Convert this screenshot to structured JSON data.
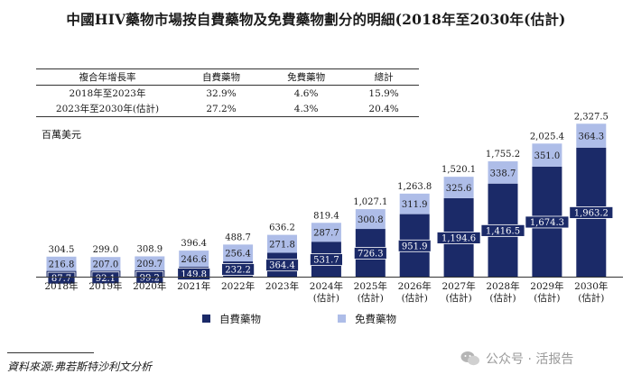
{
  "title": "中國HIV藥物市場按自費藥物及免費藥物劃分的明細(2018年至2030年(估計)",
  "cagr_table": {
    "headers": [
      "複合年增長率",
      "自費藥物",
      "免費藥物",
      "總計"
    ],
    "rows": [
      [
        "2018年至2023年",
        "32.9%",
        "4.6%",
        "15.9%"
      ],
      [
        "2023年至2030年(估計)",
        "27.2%",
        "4.3%",
        "20.4%"
      ]
    ]
  },
  "unit_label": "百萬美元",
  "source": "資料來源:弗若斯特沙利文分析",
  "watermark": "公众号 · 活报告",
  "colors": {
    "self_paid": "#1b2a68",
    "free": "#aebde8",
    "label_bg": "#1b2a68"
  },
  "chart_data": {
    "type": "bar",
    "stacked": true,
    "categories": [
      "2018年",
      "2019年",
      "2020年",
      "2021年",
      "2022年",
      "2023年",
      "2024年\n(估計)",
      "2025年\n(估計)",
      "2026年\n(估計)",
      "2027年\n(估計)",
      "2028年\n(估計)",
      "2029年\n(估計)",
      "2030年\n(估計)"
    ],
    "series": [
      {
        "name": "自費藥物",
        "values": [
          87.7,
          92.1,
          99.2,
          149.8,
          232.2,
          364.4,
          531.7,
          726.3,
          951.9,
          1194.6,
          1416.5,
          1674.3,
          1963.2
        ],
        "labels": [
          "87.7",
          "92.1",
          "99.2",
          "149.8",
          "232.2",
          "364.4",
          "531.7",
          "726.3",
          "951.9",
          "1,194.6",
          "1,416.5",
          "1,674.3",
          "1,963.2"
        ]
      },
      {
        "name": "免費藥物",
        "values": [
          216.8,
          207.0,
          209.7,
          246.6,
          256.4,
          271.8,
          287.7,
          300.8,
          311.9,
          325.6,
          338.7,
          351.0,
          364.3
        ],
        "labels": [
          "216.8",
          "207.0",
          "209.7",
          "246.6",
          "256.4",
          "271.8",
          "287.7",
          "300.8",
          "311.9",
          "325.6",
          "338.7",
          "351.0",
          "364.3"
        ]
      }
    ],
    "totals": [
      "304.5",
      "299.0",
      "308.9",
      "396.4",
      "488.7",
      "636.2",
      "819.4",
      "1,027.1",
      "1,263.8",
      "1,520.1",
      "1,755.2",
      "2,025.4",
      "2,327.5"
    ],
    "ylabel": "百萬美元",
    "ylim": [
      0,
      2400
    ],
    "legend": [
      "自費藥物",
      "免費藥物"
    ],
    "legend_position": "bottom-center",
    "grid": false
  }
}
